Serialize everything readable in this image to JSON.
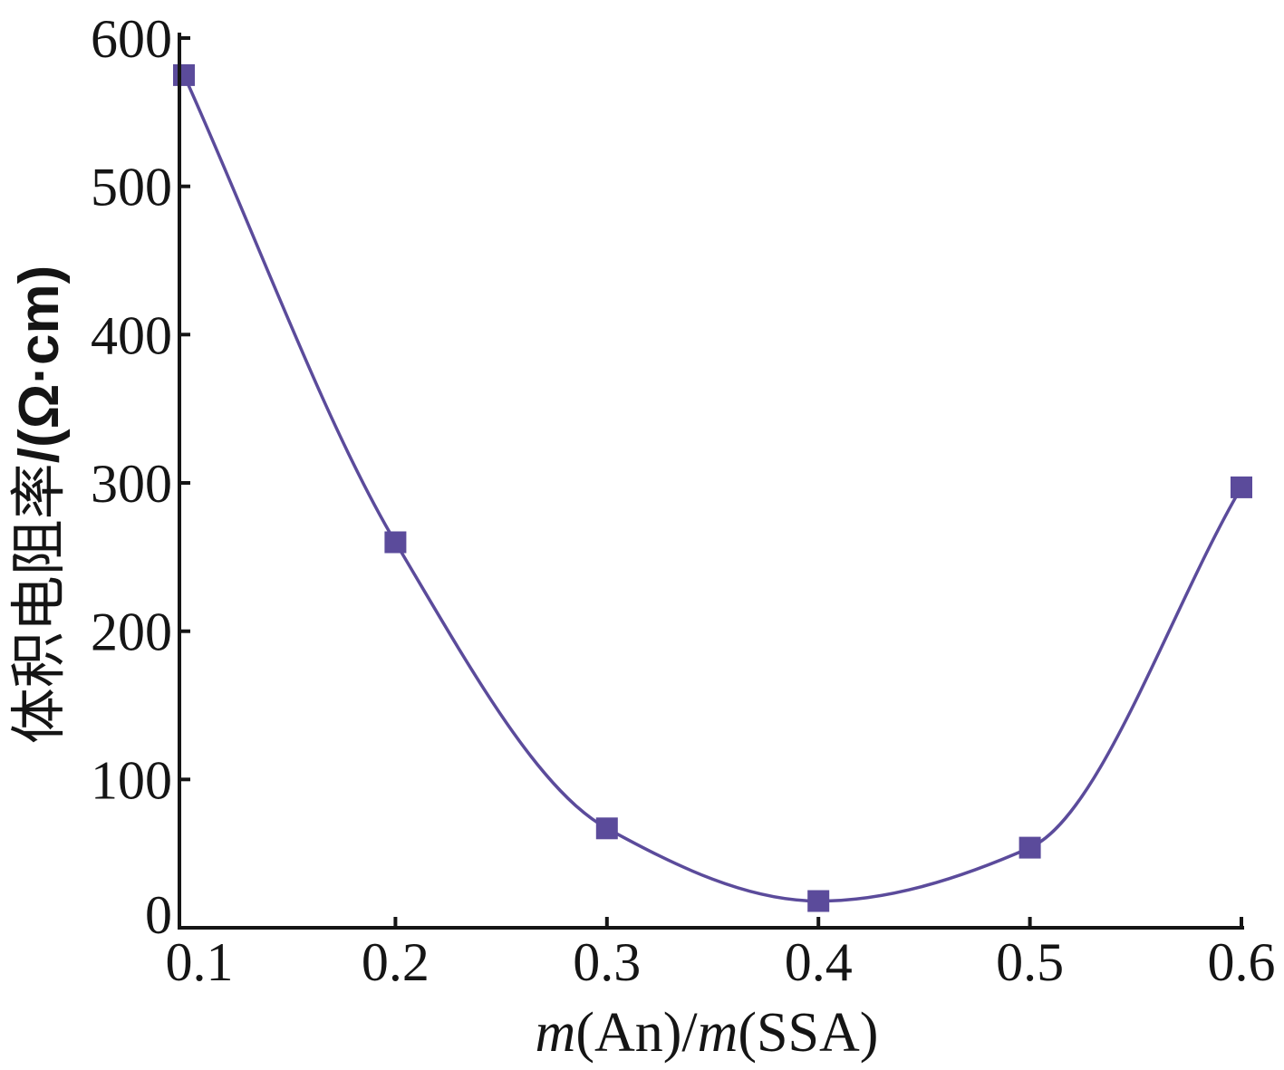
{
  "chart_data": {
    "type": "line",
    "xlabel": "m(An)/m(SSA)",
    "ylabel": "体积电阻率/(Ω·cm)",
    "xlim": [
      0.1,
      0.6
    ],
    "ylim": [
      0,
      600
    ],
    "xticks": [
      "0.1",
      "0.2",
      "0.3",
      "0.4",
      "0.5",
      "0.6"
    ],
    "yticks": [
      "0",
      "100",
      "200",
      "300",
      "400",
      "500",
      "600"
    ],
    "grid": false,
    "axis_color": "#151515",
    "series": [
      {
        "color": "#5b4b9b",
        "x": [
          0.1,
          0.2,
          0.3,
          0.4,
          0.5,
          0.6
        ],
        "y": [
          575,
          260,
          67,
          18,
          54,
          297
        ]
      }
    ]
  }
}
